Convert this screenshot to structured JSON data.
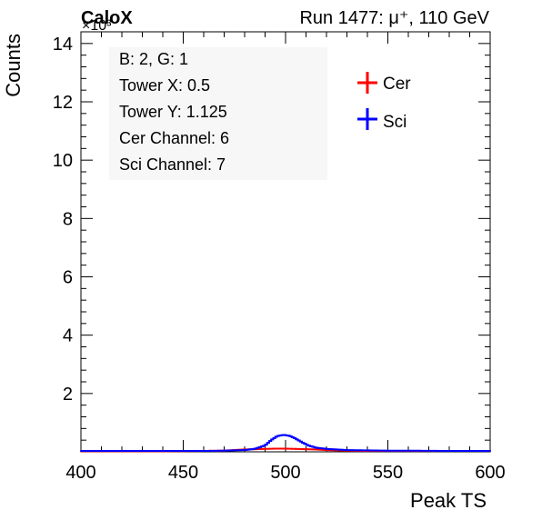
{
  "header": {
    "left_label": "CaloX",
    "exponent_label": "×10³",
    "right_label": "Run 1477:   μ⁺, 110 GeV"
  },
  "info_box": {
    "lines": [
      "B: 2, G: 1",
      "Tower X: 0.5",
      "Tower Y: 1.125",
      "Cer Channel: 6",
      "Sci Channel: 7"
    ]
  },
  "colors": {
    "cer": "#ff0000",
    "sci": "#0000ff"
  },
  "chart_data": {
    "type": "line",
    "title": "",
    "xlabel": "Peak TS",
    "ylabel": "Counts",
    "xlim": [
      400,
      600
    ],
    "ylim": [
      0,
      14.4
    ],
    "y_multiplier": "×10³",
    "x_ticks": [
      400,
      450,
      500,
      550,
      600
    ],
    "y_ticks": [
      2,
      4,
      6,
      8,
      10,
      12,
      14
    ],
    "legend_position": "top-right",
    "grid": false,
    "series": [
      {
        "name": "Cer",
        "color": "#ff0000",
        "x": [
          400,
          420,
          440,
          460,
          470,
          475,
          480,
          485,
          490,
          495,
          500,
          505,
          510,
          515,
          520,
          530,
          540,
          560,
          580,
          600
        ],
        "y": [
          0.02,
          0.02,
          0.02,
          0.03,
          0.04,
          0.06,
          0.08,
          0.09,
          0.1,
          0.11,
          0.11,
          0.1,
          0.09,
          0.08,
          0.06,
          0.04,
          0.03,
          0.03,
          0.03,
          0.03
        ]
      },
      {
        "name": "Sci",
        "color": "#0000ff",
        "x": [
          400,
          420,
          440,
          460,
          470,
          480,
          485,
          490,
          493,
          496,
          499,
          502,
          505,
          508,
          511,
          515,
          520,
          525,
          530,
          540,
          550,
          560,
          580,
          600
        ],
        "y": [
          0.03,
          0.03,
          0.03,
          0.03,
          0.04,
          0.06,
          0.1,
          0.22,
          0.4,
          0.54,
          0.58,
          0.55,
          0.45,
          0.33,
          0.22,
          0.14,
          0.1,
          0.08,
          0.06,
          0.05,
          0.04,
          0.04,
          0.03,
          0.03
        ]
      }
    ]
  }
}
